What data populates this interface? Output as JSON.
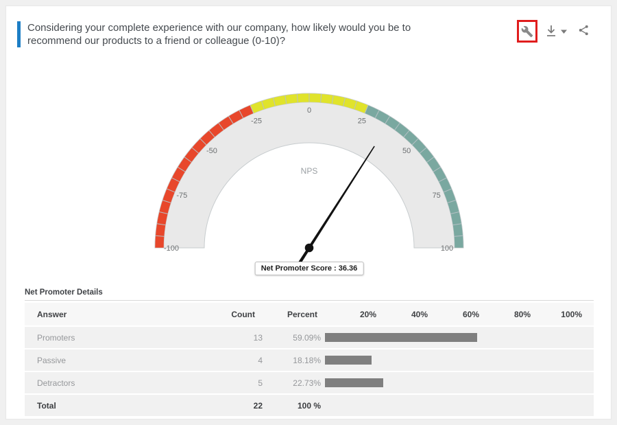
{
  "header": {
    "question": "Considering your complete experience with our company, how likely would you be to recommend our products to a friend or colleague (0-10)?",
    "toolbar_icons": [
      "wrench-icon",
      "download-icon",
      "dropdown-caret-icon",
      "share-icon"
    ]
  },
  "colors": {
    "accent_blue": "#1d7ec5",
    "highlight_red": "#e01d1d",
    "gauge_red": "#e8472b",
    "gauge_yellow": "#e0e32b",
    "gauge_teal": "#7aa8a0",
    "gauge_dial": "#e9e9e9",
    "needle": "#121212",
    "bar_gray": "#7f7f7f"
  },
  "chart_data": [
    {
      "type": "gauge",
      "center_label": "NPS",
      "min": -100,
      "max": 100,
      "value": 36.36,
      "tick_labels": [
        -100,
        -75,
        -50,
        -25,
        0,
        25,
        50,
        75,
        100
      ],
      "minor_tick_step": 5,
      "bands": [
        {
          "from": -100,
          "to": -25,
          "color": "#e8472b"
        },
        {
          "from": -25,
          "to": 25,
          "color": "#e0e32b"
        },
        {
          "from": 25,
          "to": 100,
          "color": "#7aa8a0"
        }
      ],
      "tooltip_text": "Net Promoter Score : 36.36",
      "tooltip_label": "Net Promoter Score",
      "tooltip_value": 36.36
    },
    {
      "type": "table",
      "title": "Net Promoter Details",
      "columns": [
        "Answer",
        "Count",
        "Percent"
      ],
      "percent_axis_labels": [
        "20%",
        "40%",
        "60%",
        "80%",
        "100%"
      ],
      "axis_range_percent": [
        0,
        100
      ],
      "rows": [
        {
          "answer": "Promoters",
          "count": 13,
          "percent": "59.09%",
          "bar_pct": 59.09
        },
        {
          "answer": "Passive",
          "count": 4,
          "percent": "18.18%",
          "bar_pct": 18.18
        },
        {
          "answer": "Detractors",
          "count": 5,
          "percent": "22.73%",
          "bar_pct": 22.73
        }
      ],
      "total": {
        "answer": "Total",
        "count": 22,
        "percent": "100 %"
      }
    }
  ]
}
